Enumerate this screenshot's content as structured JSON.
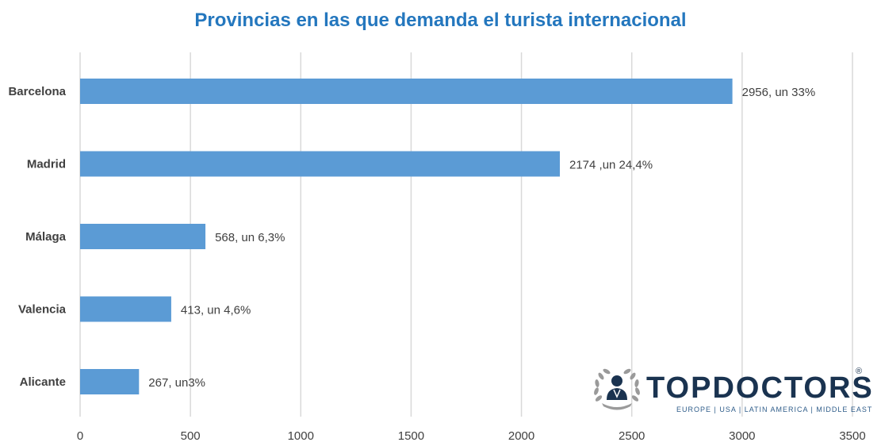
{
  "chart_data": {
    "type": "bar",
    "orientation": "horizontal",
    "title": "Provincias en las que demanda el turista internacional",
    "categories": [
      "Barcelona",
      "Madrid",
      "Málaga",
      "Valencia",
      "Alicante"
    ],
    "values": [
      2956,
      2174,
      568,
      413,
      267
    ],
    "data_labels": [
      "2956, un 33%",
      "2174 ,un 24,4%",
      "568, un 6,3%",
      "413, un 4,6%",
      "267, un3%"
    ],
    "xlim": [
      0,
      3500
    ],
    "xticks": [
      "0",
      "500",
      "1000",
      "1500",
      "2000",
      "2500",
      "3000",
      "3500"
    ],
    "grid": "vertical",
    "bar_color": "#5B9BD5",
    "grid_color": "#D9D9D9",
    "title_color": "#2477BE"
  },
  "logo": {
    "word_part1": "TOP",
    "word_part2": "DOCTORS",
    "registered": "®",
    "tagline": "EUROPE  |  USA  |  LATIN AMERICA  |  MIDDLE EAST",
    "icon": "doctor-laurel-icon"
  }
}
